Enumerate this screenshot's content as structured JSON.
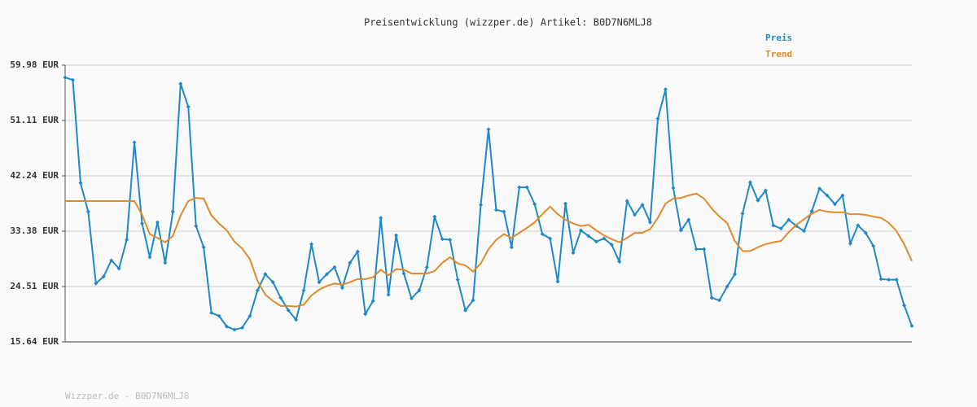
{
  "chart_data": {
    "type": "line",
    "title": "Preisentwicklung (wizzper.de) Artikel: B0D7N6MLJ8",
    "footer": "Wizzper.de - B0D7N6MLJ8",
    "ylim": [
      15.64,
      59.98
    ],
    "yticks": [
      {
        "value": 15.64,
        "label": "15.64 EUR"
      },
      {
        "value": 24.51,
        "label": "24.51 EUR"
      },
      {
        "value": 33.38,
        "label": "33.38 EUR"
      },
      {
        "value": 42.24,
        "label": "42.24 EUR"
      },
      {
        "value": 51.11,
        "label": "51.11 EUR"
      },
      {
        "value": 59.98,
        "label": "59.98 EUR"
      }
    ],
    "grid": true,
    "legend": "top-right",
    "series": [
      {
        "name": "Preis",
        "color": "#1f88c8",
        "markers": true,
        "values": [
          58.0,
          57.6,
          41.1,
          36.5,
          25.0,
          26.1,
          28.7,
          27.4,
          32.0,
          47.6,
          34.6,
          29.2,
          34.8,
          28.3,
          36.5,
          57.0,
          53.3,
          34.2,
          30.8,
          20.3,
          19.8,
          18.1,
          17.6,
          17.9,
          19.8,
          23.9,
          26.5,
          25.2,
          22.7,
          20.7,
          19.2,
          23.9,
          31.3,
          25.2,
          26.5,
          27.6,
          24.3,
          28.3,
          30.1,
          20.1,
          22.2,
          35.5,
          23.2,
          32.7,
          26.6,
          22.6,
          23.9,
          27.6,
          35.7,
          32.1,
          32.0,
          25.6,
          20.7,
          22.3,
          37.6,
          49.7,
          36.8,
          36.5,
          30.8,
          40.4,
          40.4,
          37.7,
          32.9,
          32.2,
          25.3,
          37.8,
          29.9,
          33.5,
          32.6,
          31.7,
          32.2,
          31.2,
          28.5,
          38.2,
          36.0,
          37.6,
          34.8,
          51.4,
          56.1,
          40.3,
          33.5,
          35.2,
          30.5,
          30.5,
          22.7,
          22.3,
          24.5,
          26.5,
          36.2,
          41.2,
          38.3,
          39.9,
          34.3,
          33.8,
          35.2,
          34.2,
          33.4,
          36.6,
          40.2,
          39.1,
          37.7,
          39.1,
          31.4,
          34.3,
          33.1,
          31.0,
          25.7,
          25.6,
          25.6,
          21.5,
          18.2
        ]
      },
      {
        "name": "Trend",
        "color": "#e08a2a",
        "markers": false,
        "values": [
          38.2,
          38.2,
          38.2,
          38.2,
          38.2,
          38.2,
          38.2,
          38.2,
          38.2,
          38.2,
          36.0,
          32.9,
          32.3,
          31.6,
          32.6,
          35.9,
          38.2,
          38.7,
          38.6,
          35.9,
          34.6,
          33.5,
          31.7,
          30.6,
          28.9,
          25.4,
          23.2,
          22.2,
          21.4,
          21.4,
          21.3,
          21.6,
          23.1,
          24.0,
          24.6,
          25.0,
          24.8,
          25.2,
          25.7,
          25.7,
          26.0,
          27.2,
          26.3,
          27.3,
          27.2,
          26.6,
          26.6,
          26.6,
          27.0,
          28.3,
          29.2,
          28.2,
          27.9,
          26.9,
          28.2,
          30.5,
          32.0,
          32.9,
          32.3,
          33.1,
          33.9,
          34.8,
          36.1,
          37.3,
          36.1,
          35.2,
          34.6,
          34.2,
          34.4,
          33.5,
          32.7,
          32.1,
          31.6,
          32.3,
          33.1,
          33.1,
          33.7,
          35.5,
          37.8,
          38.6,
          38.7,
          39.1,
          39.4,
          38.6,
          37.0,
          35.7,
          34.7,
          31.8,
          30.2,
          30.2,
          30.8,
          31.3,
          31.6,
          31.8,
          33.2,
          34.4,
          35.3,
          36.2,
          36.8,
          36.5,
          36.4,
          36.4,
          36.1,
          36.1,
          36.0,
          35.7,
          35.5,
          34.7,
          33.4,
          31.3,
          28.6
        ]
      }
    ]
  }
}
